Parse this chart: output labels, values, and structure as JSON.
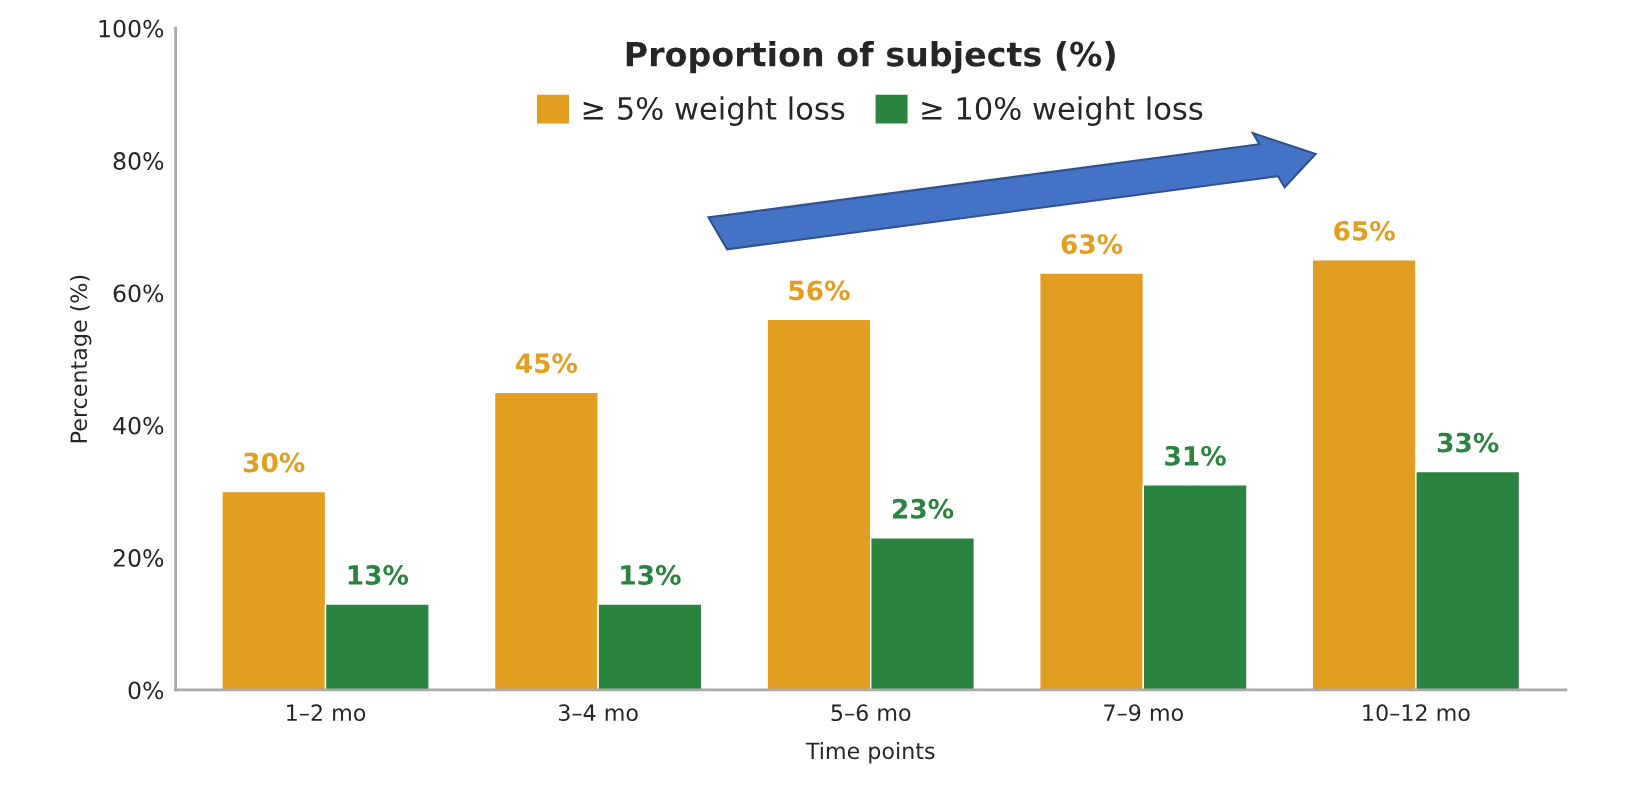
{
  "chart_data": {
    "type": "bar",
    "title": "Proportion of subjects (%)",
    "xlabel": "Time points",
    "ylabel": "Percentage (%)",
    "categories": [
      "1–2 mo",
      "3–4 mo",
      "5–6 mo",
      "7–9 mo",
      "10–12 mo"
    ],
    "series": [
      {
        "name": "≥ 5% weight loss",
        "color": "#e19e20",
        "values": [
          30,
          45,
          56,
          63,
          65
        ],
        "value_labels": [
          "30%",
          "45%",
          "56%",
          "63%",
          "65%"
        ]
      },
      {
        "name": "≥ 10% weight loss",
        "color": "#2a843f",
        "values": [
          13,
          13,
          23,
          31,
          33
        ],
        "value_labels": [
          "13%",
          "13%",
          "23%",
          "31%",
          "33%"
        ]
      }
    ],
    "ylim": [
      0,
      100
    ],
    "yticks": [
      {
        "value": 0,
        "label": "0%"
      },
      {
        "value": 20,
        "label": "20%"
      },
      {
        "value": 40,
        "label": "40%"
      },
      {
        "value": 60,
        "label": "60%"
      },
      {
        "value": 80,
        "label": "80%"
      },
      {
        "value": 100,
        "label": "100%"
      }
    ],
    "grid": false,
    "legend": "top"
  }
}
